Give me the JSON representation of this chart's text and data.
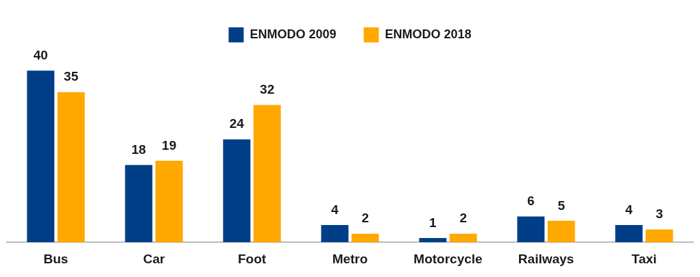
{
  "chart_data": {
    "type": "bar",
    "categories": [
      "Bus",
      "Car",
      "Foot",
      "Metro",
      "Motorcycle",
      "Railways",
      "Taxi"
    ],
    "series": [
      {
        "name": "ENMODO 2009",
        "color": "#003f88",
        "values": [
          40,
          18,
          24,
          4,
          1,
          6,
          4
        ]
      },
      {
        "name": "ENMODO 2018",
        "color": "#ffa800",
        "values": [
          35,
          19,
          32,
          2,
          2,
          5,
          3
        ]
      }
    ],
    "data_labels": true,
    "legend": "top",
    "grid": false
  }
}
